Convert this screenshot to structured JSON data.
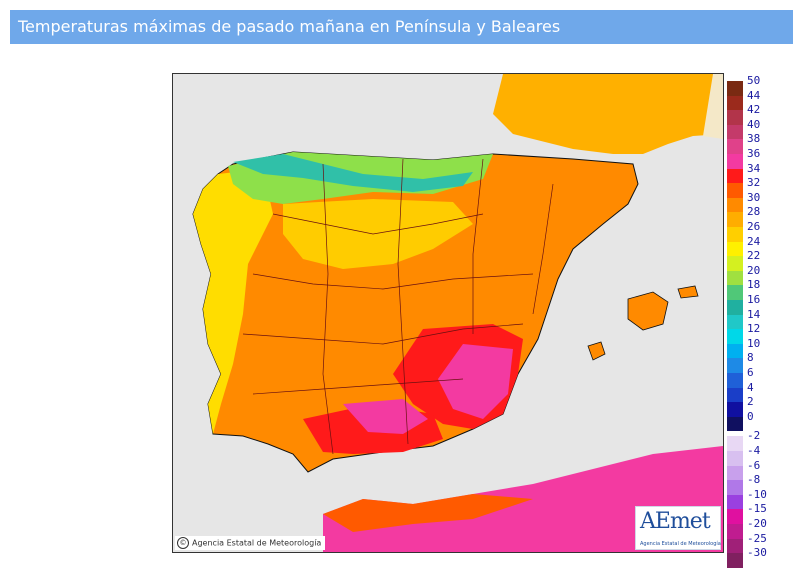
{
  "header": {
    "title": "Temperaturas máximas de pasado mañana en Península y Baleares"
  },
  "map": {
    "credit": "Agencia Estatal de Meteorología",
    "credit_symbol": "©",
    "logo_text": "AEmet",
    "logo_subtext": "Agencia Estatal de Meteorología",
    "colors": {
      "sea": "#e6e6e6",
      "border": "#6a1010",
      "coast": "#111111"
    }
  },
  "legend": {
    "positive": [
      {
        "label": "50",
        "color": "#7a2a12"
      },
      {
        "label": "44",
        "color": "#9b2a1c"
      },
      {
        "label": "42",
        "color": "#b2344a"
      },
      {
        "label": "40",
        "color": "#c43a6a"
      },
      {
        "label": "38",
        "color": "#e0418a"
      },
      {
        "label": "36",
        "color": "#f33aa1"
      },
      {
        "label": "34",
        "color": "#ff1a1a"
      },
      {
        "label": "32",
        "color": "#ff5a00"
      },
      {
        "label": "30",
        "color": "#ff8a00"
      },
      {
        "label": "28",
        "color": "#ffad00"
      },
      {
        "label": "26",
        "color": "#ffcf00"
      },
      {
        "label": "24",
        "color": "#fff000"
      },
      {
        "label": "22",
        "color": "#d4f020"
      },
      {
        "label": "20",
        "color": "#a0e040"
      },
      {
        "label": "18",
        "color": "#50c878"
      },
      {
        "label": "16",
        "color": "#20b0a0"
      },
      {
        "label": "14",
        "color": "#20c8c8"
      },
      {
        "label": "12",
        "color": "#00d8e8"
      },
      {
        "label": "10",
        "color": "#00b0f0"
      },
      {
        "label": "8",
        "color": "#1e8ae6"
      },
      {
        "label": "6",
        "color": "#1f60d8"
      },
      {
        "label": "4",
        "color": "#1a3ec8"
      },
      {
        "label": "2",
        "color": "#1010a0"
      },
      {
        "label": "0",
        "color": "#101060"
      }
    ],
    "negative": [
      {
        "label": "-2",
        "color": "#e8d8f4"
      },
      {
        "label": "-4",
        "color": "#d8c0f0"
      },
      {
        "label": "-6",
        "color": "#c8a0ec"
      },
      {
        "label": "-8",
        "color": "#b078e8"
      },
      {
        "label": "-10",
        "color": "#9a40e0"
      },
      {
        "label": "-15",
        "color": "#e010a0"
      },
      {
        "label": "-20",
        "color": "#c01c90"
      },
      {
        "label": "-25",
        "color": "#a02078"
      },
      {
        "label": "-30",
        "color": "#802060"
      }
    ]
  }
}
